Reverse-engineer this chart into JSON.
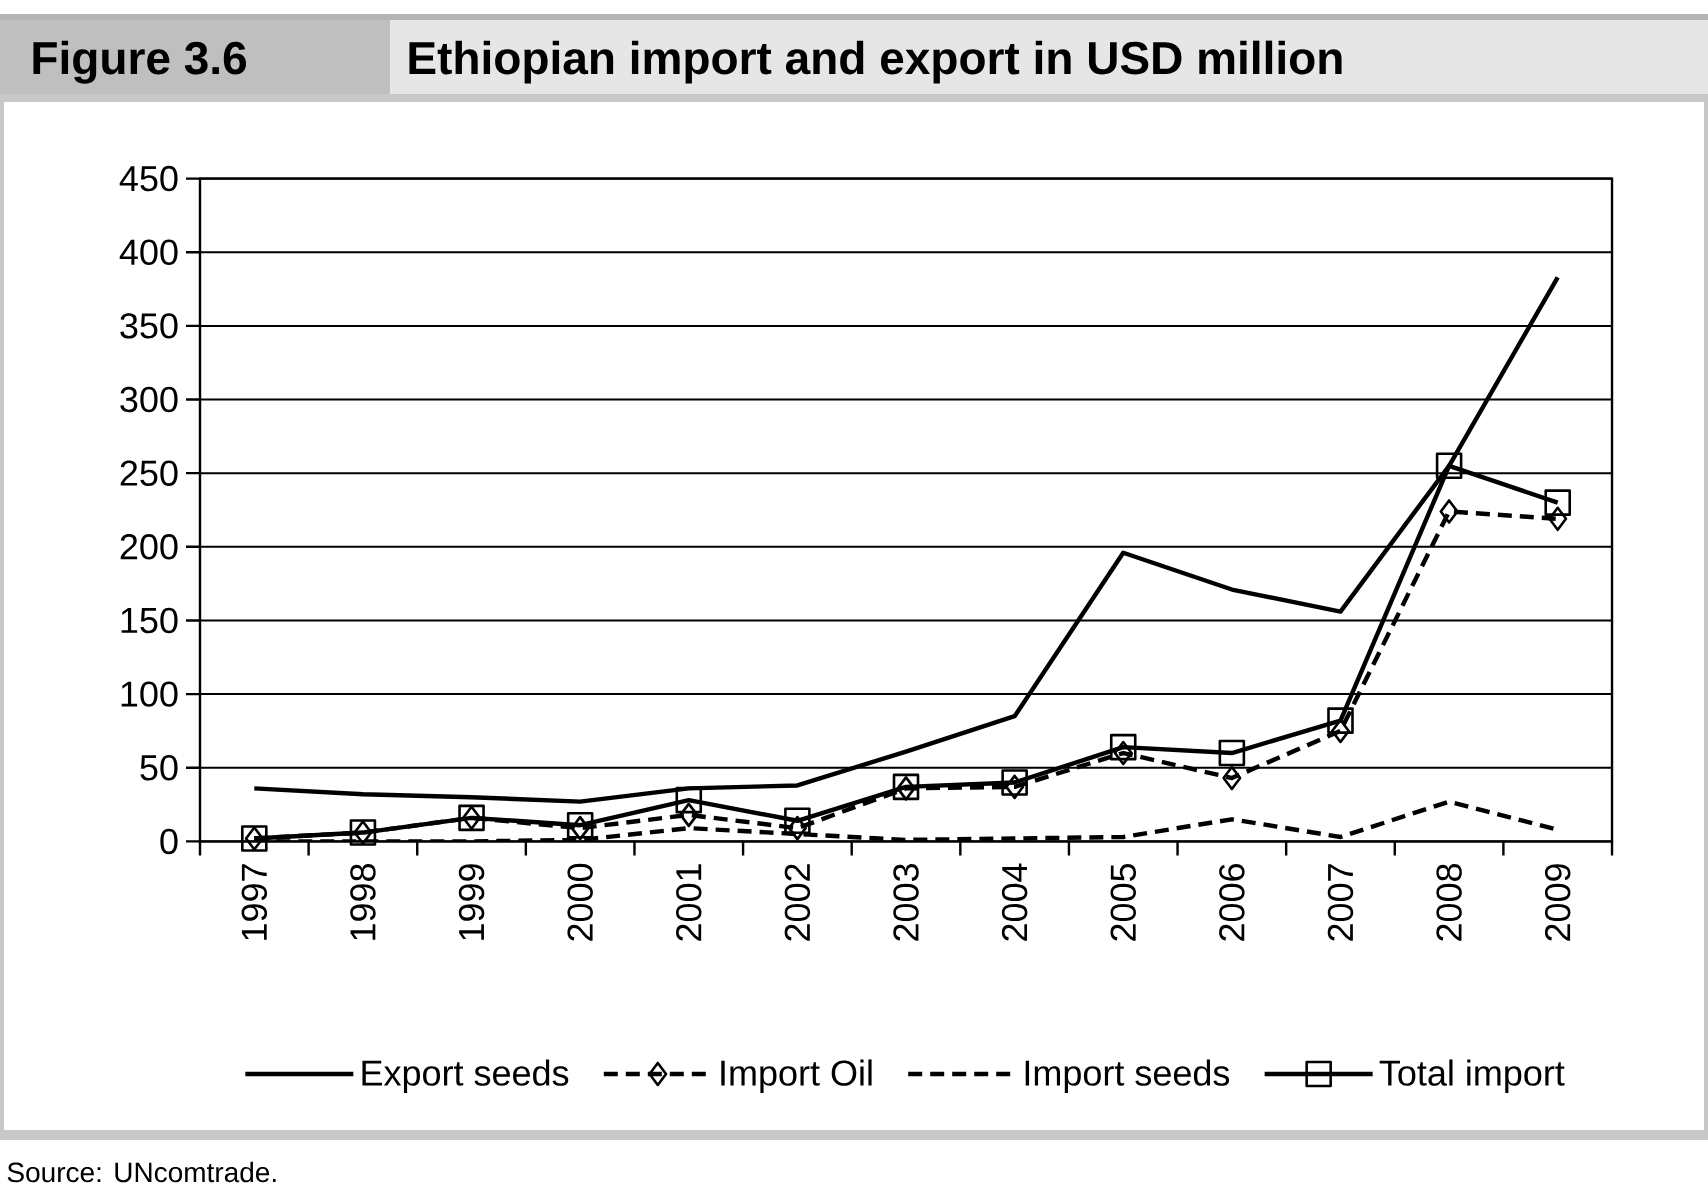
{
  "chart_data": {
    "type": "line",
    "title": "Ethiopian import and export in USD million",
    "annotations": [
      "Figure 3.6",
      "Source: UNcomtrade."
    ],
    "categories": [
      "1997",
      "1998",
      "1999",
      "2000",
      "2001",
      "2002",
      "2003",
      "2004",
      "2005",
      "2006",
      "2007",
      "2008",
      "2009"
    ],
    "series": [
      {
        "name": "Export seeds",
        "color": "#000000",
        "line_style": "solid",
        "marker": "none",
        "values": [
          36,
          32,
          30,
          27,
          36,
          38,
          61,
          85,
          196,
          171,
          156,
          255,
          383
        ]
      },
      {
        "name": "Import Oil",
        "color": "#000000",
        "line_style": "dashed",
        "marker": "diamond",
        "values": [
          2,
          6,
          16,
          9,
          18,
          9,
          36,
          37,
          60,
          43,
          75,
          224,
          219
        ]
      },
      {
        "name": "Import seeds",
        "color": "#000000",
        "line_style": "dashed",
        "marker": "none",
        "values": [
          0,
          0,
          0,
          1,
          9,
          5,
          1,
          2,
          3,
          15,
          3,
          27,
          8
        ]
      },
      {
        "name": "Total import",
        "color": "#000000",
        "line_style": "solid",
        "marker": "square",
        "values": [
          2,
          6,
          16,
          11,
          28,
          14,
          37,
          40,
          64,
          60,
          82,
          255,
          230
        ]
      }
    ],
    "ylim": [
      0,
      450
    ],
    "yticks": [
      0,
      50,
      100,
      150,
      200,
      250,
      300,
      350,
      400,
      450
    ],
    "grid": "y",
    "legend": "bottom"
  }
}
